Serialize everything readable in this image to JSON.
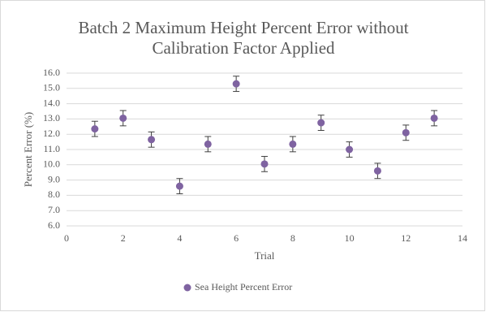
{
  "chart_data": {
    "type": "scatter",
    "title": "Batch 2 Maximum Height Percent Error without Calibration Factor Applied",
    "x_label": "Trial",
    "y_label": "Percent Error (%)",
    "x": [
      1,
      2,
      3,
      4,
      5,
      6,
      7,
      8,
      9,
      10,
      11,
      12,
      13
    ],
    "series": [
      {
        "name": "Sea Height Percent Error",
        "color": "#7f63a1",
        "values": [
          12.35,
          13.05,
          11.65,
          8.6,
          11.35,
          15.3,
          10.05,
          11.35,
          12.75,
          11.0,
          9.6,
          12.1,
          13.05
        ],
        "errors": [
          0.5,
          0.5,
          0.5,
          0.5,
          0.5,
          0.5,
          0.5,
          0.5,
          0.5,
          0.5,
          0.5,
          0.5,
          0.5
        ]
      }
    ],
    "xlim": [
      0,
      14
    ],
    "xticks": [
      0,
      2,
      4,
      6,
      8,
      10,
      12,
      14
    ],
    "ylim": [
      6,
      16
    ],
    "yticks": [
      {
        "value": 6,
        "label": "6.0"
      },
      {
        "value": 7,
        "label": "7.0"
      },
      {
        "value": 8,
        "label": "8.0"
      },
      {
        "value": 9,
        "label": "9.0"
      },
      {
        "value": 10,
        "label": "10.0"
      },
      {
        "value": 11,
        "label": "11.0"
      },
      {
        "value": 12,
        "label": "12.0"
      },
      {
        "value": 13,
        "label": "13.0"
      },
      {
        "value": 14,
        "label": "14.0"
      },
      {
        "value": 15,
        "label": "15.0"
      },
      {
        "value": 16,
        "label": "16.0"
      }
    ],
    "grid": true,
    "legend": "bottom"
  }
}
